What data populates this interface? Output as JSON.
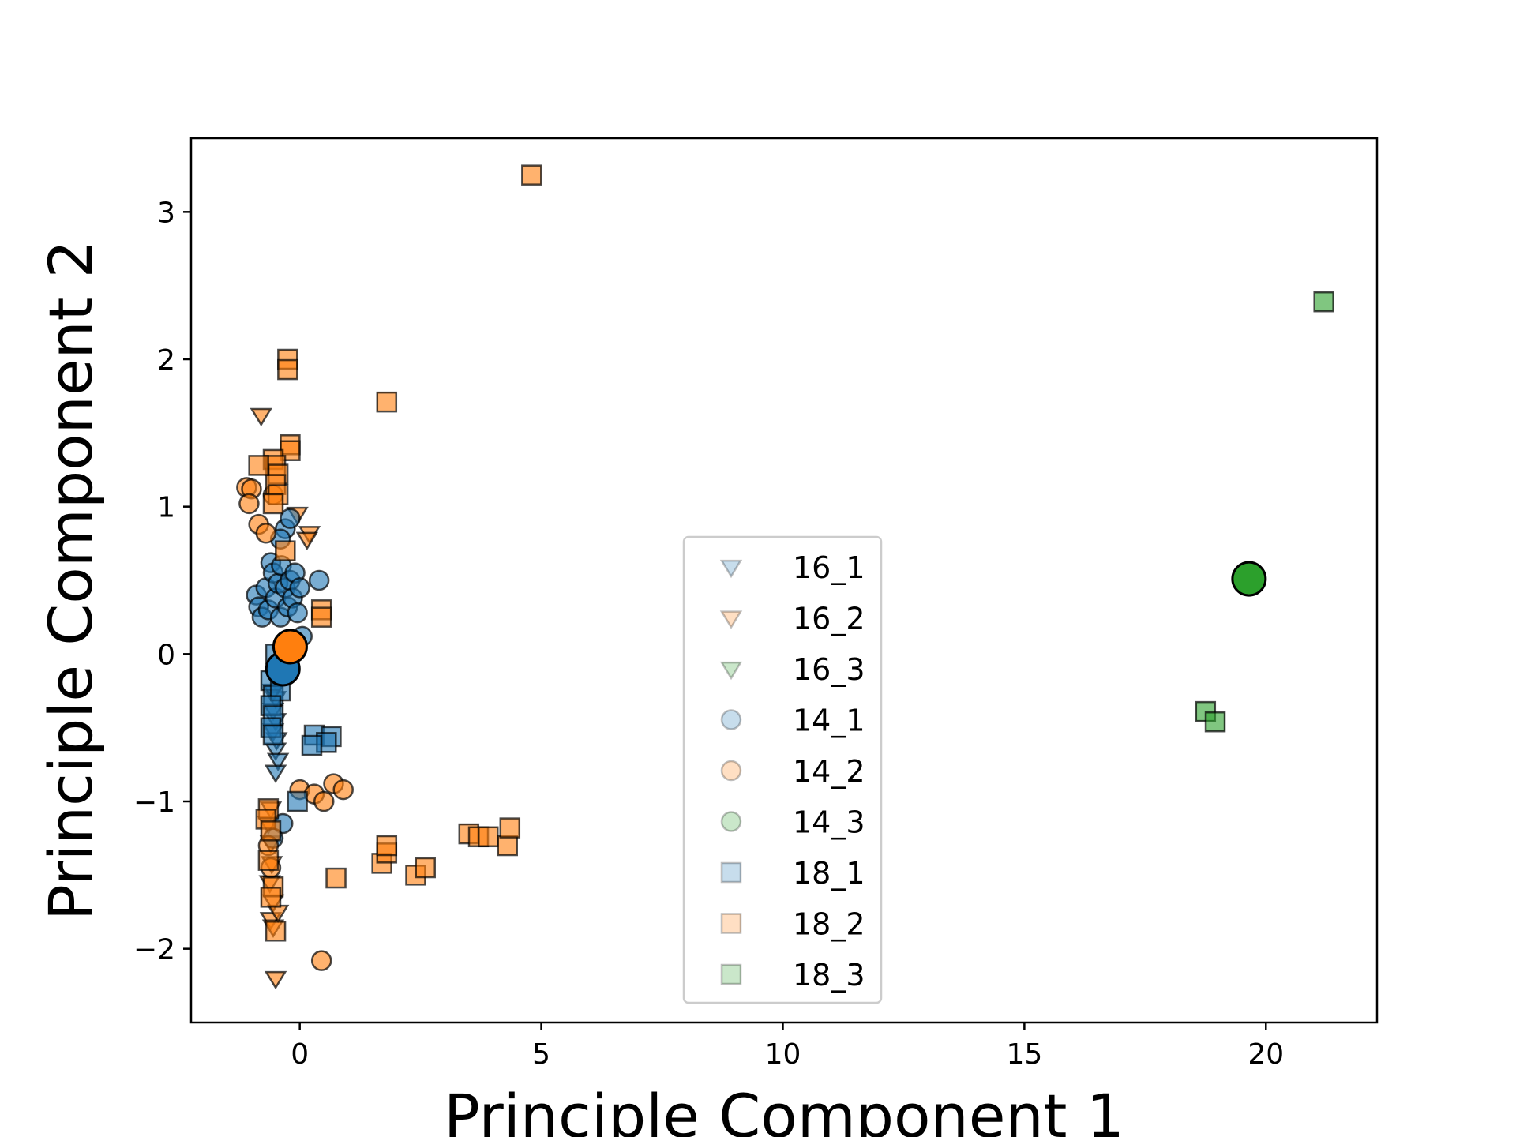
{
  "chart_data": {
    "type": "scatter",
    "xlabel": "Principle Component 1",
    "ylabel": "Principle Component 2",
    "xlim": [
      -2.25,
      22.3
    ],
    "ylim": [
      -2.5,
      3.5
    ],
    "xticks": [
      0,
      5,
      10,
      15,
      20
    ],
    "yticks": [
      -2,
      -1,
      0,
      1,
      2,
      3
    ],
    "xtick_labels": [
      "0",
      "5",
      "10",
      "15",
      "20"
    ],
    "ytick_labels": [
      "−2",
      "−1",
      "0",
      "1",
      "2",
      "3"
    ],
    "grid": false,
    "legend_position": "center-right",
    "colors": {
      "1": "#1f77b4",
      "2": "#ff7f0e",
      "3": "#2ca02c"
    },
    "series": [
      {
        "name": "16_1",
        "marker": "triangle-down",
        "color": "#1f77b4",
        "points": [
          [
            -0.5,
            -0.3
          ],
          [
            -0.55,
            -0.38
          ],
          [
            -0.5,
            -0.45
          ],
          [
            -0.55,
            -0.52
          ],
          [
            -0.48,
            -0.58
          ],
          [
            -0.5,
            -0.65
          ],
          [
            -0.45,
            -0.72
          ],
          [
            -0.5,
            -0.8
          ],
          [
            -0.45,
            -0.2
          ],
          [
            -0.55,
            -0.25
          ]
        ]
      },
      {
        "name": "16_2",
        "marker": "triangle-down",
        "color": "#ff7f0e",
        "points": [
          [
            -0.8,
            1.62
          ],
          [
            0.2,
            0.82
          ],
          [
            0.15,
            0.78
          ],
          [
            -0.05,
            0.95
          ],
          [
            -0.6,
            -1.05
          ],
          [
            -0.65,
            -1.15
          ],
          [
            -0.6,
            -1.28
          ],
          [
            -0.58,
            -1.42
          ],
          [
            -0.62,
            -1.55
          ],
          [
            -0.55,
            -1.68
          ],
          [
            -0.6,
            -1.8
          ],
          [
            -0.55,
            -1.85
          ],
          [
            -0.45,
            -1.75
          ],
          [
            -0.5,
            -2.2
          ]
        ]
      },
      {
        "name": "16_3",
        "marker": "triangle-down",
        "color": "#2ca02c",
        "points": []
      },
      {
        "name": "14_1",
        "marker": "circle",
        "color": "#1f77b4",
        "points": [
          [
            -0.9,
            0.4
          ],
          [
            -0.85,
            0.32
          ],
          [
            -0.78,
            0.25
          ],
          [
            -0.7,
            0.45
          ],
          [
            -0.65,
            0.3
          ],
          [
            -0.6,
            0.62
          ],
          [
            -0.55,
            0.55
          ],
          [
            -0.5,
            0.38
          ],
          [
            -0.45,
            0.48
          ],
          [
            -0.4,
            0.25
          ],
          [
            -0.38,
            0.6
          ],
          [
            -0.3,
            0.45
          ],
          [
            -0.25,
            0.32
          ],
          [
            -0.2,
            0.5
          ],
          [
            -0.15,
            0.38
          ],
          [
            -0.1,
            0.55
          ],
          [
            -0.05,
            0.28
          ],
          [
            0.0,
            0.45
          ],
          [
            0.4,
            0.5
          ],
          [
            -0.3,
            0.85
          ],
          [
            -0.2,
            0.92
          ],
          [
            -0.4,
            0.78
          ],
          [
            -0.35,
            -1.15
          ],
          [
            -0.55,
            -1.25
          ],
          [
            0.05,
            0.12
          ]
        ]
      },
      {
        "name": "14_2",
        "marker": "circle",
        "color": "#ff7f0e",
        "points": [
          [
            -1.1,
            1.13
          ],
          [
            -1.0,
            1.12
          ],
          [
            -1.05,
            1.02
          ],
          [
            -0.85,
            0.88
          ],
          [
            -0.7,
            0.82
          ],
          [
            -0.55,
            1.08
          ],
          [
            -0.65,
            -1.3
          ],
          [
            -0.6,
            -1.45
          ],
          [
            0.0,
            -0.92
          ],
          [
            0.3,
            -0.95
          ],
          [
            0.5,
            -1.0
          ],
          [
            0.7,
            -0.88
          ],
          [
            0.9,
            -0.92
          ],
          [
            0.45,
            -2.08
          ]
        ]
      },
      {
        "name": "14_3",
        "marker": "circle",
        "color": "#2ca02c",
        "points": []
      },
      {
        "name": "18_1",
        "marker": "square",
        "color": "#1f77b4",
        "points": [
          [
            -0.5,
            0.0
          ],
          [
            -0.45,
            -0.1
          ],
          [
            -0.6,
            -0.18
          ],
          [
            -0.55,
            -0.28
          ],
          [
            -0.4,
            -0.25
          ],
          [
            -0.6,
            -0.35
          ],
          [
            -0.55,
            -0.42
          ],
          [
            -0.6,
            -0.5
          ],
          [
            -0.55,
            -0.55
          ],
          [
            0.3,
            -0.55
          ],
          [
            0.65,
            -0.56
          ],
          [
            0.55,
            -0.6
          ],
          [
            0.25,
            -0.62
          ],
          [
            -0.05,
            -1.0
          ]
        ]
      },
      {
        "name": "18_2",
        "marker": "square",
        "color": "#ff7f0e",
        "points": [
          [
            4.8,
            3.25
          ],
          [
            -0.25,
            2.0
          ],
          [
            -0.25,
            1.93
          ],
          [
            1.8,
            1.71
          ],
          [
            -0.2,
            1.42
          ],
          [
            -0.2,
            1.38
          ],
          [
            -0.55,
            1.32
          ],
          [
            -0.5,
            1.28
          ],
          [
            -0.45,
            1.22
          ],
          [
            -0.5,
            1.15
          ],
          [
            -0.45,
            1.08
          ],
          [
            -0.55,
            1.02
          ],
          [
            -0.85,
            1.28
          ],
          [
            -0.3,
            0.7
          ],
          [
            0.45,
            0.3
          ],
          [
            0.45,
            0.25
          ],
          [
            -0.65,
            -1.05
          ],
          [
            -0.7,
            -1.12
          ],
          [
            -0.6,
            -1.2
          ],
          [
            -0.65,
            -1.4
          ],
          [
            -0.55,
            -1.58
          ],
          [
            -0.6,
            -1.65
          ],
          [
            -0.5,
            -1.88
          ],
          [
            0.75,
            -1.52
          ],
          [
            1.7,
            -1.42
          ],
          [
            1.8,
            -1.35
          ],
          [
            1.8,
            -1.3
          ],
          [
            2.4,
            -1.5
          ],
          [
            2.6,
            -1.45
          ],
          [
            3.5,
            -1.22
          ],
          [
            3.7,
            -1.24
          ],
          [
            3.9,
            -1.24
          ],
          [
            4.3,
            -1.3
          ],
          [
            4.35,
            -1.18
          ]
        ]
      },
      {
        "name": "18_3",
        "marker": "square",
        "color": "#2ca02c",
        "points": [
          [
            21.2,
            2.39
          ],
          [
            18.75,
            -0.39
          ],
          [
            18.95,
            -0.46
          ]
        ]
      }
    ],
    "centroids": [
      {
        "color": "#1f77b4",
        "x": -0.35,
        "y": -0.1
      },
      {
        "color": "#ff7f0e",
        "x": -0.2,
        "y": 0.05
      },
      {
        "color": "#2ca02c",
        "x": 19.65,
        "y": 0.51
      }
    ]
  }
}
